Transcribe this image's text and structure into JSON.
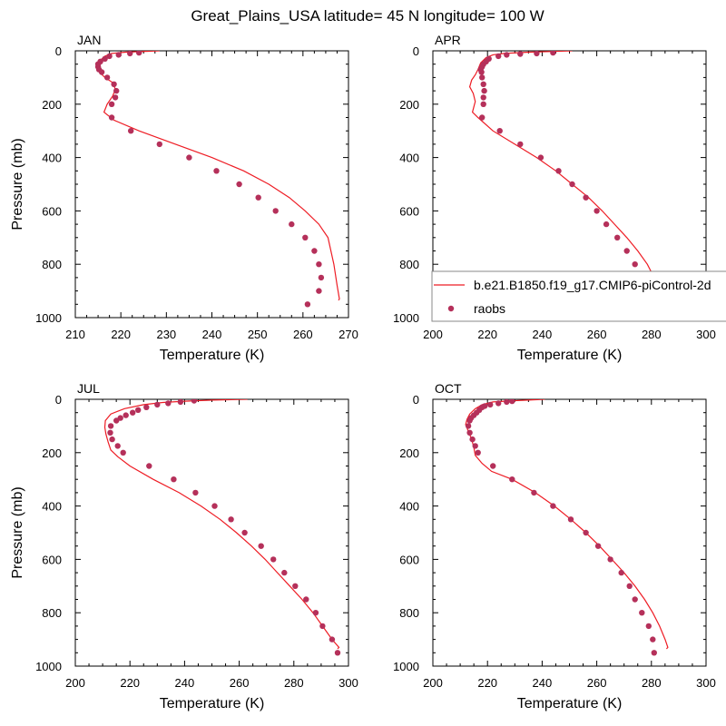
{
  "figure_title": "Great_Plains_USA  latitude= 45 N longitude= 100 W",
  "colors": {
    "model_line": "#ee1c24",
    "obs_marker": "#b5305a",
    "legend_border": "#888888"
  },
  "legend": {
    "model_label": "b.e21.B1850.f19_g17.CMIP6-piControl-2d",
    "obs_label": "raobs"
  },
  "chart_data": [
    {
      "type": "line",
      "panel_label": "JAN",
      "xlabel": "Temperature (K)",
      "ylabel": "Pressure (mb)",
      "xlim": [
        210,
        270
      ],
      "ylim": [
        0,
        1000
      ],
      "y_inverted": true,
      "xticks": [
        210,
        220,
        230,
        240,
        250,
        260,
        270
      ],
      "yticks": [
        0,
        200,
        400,
        600,
        800,
        1000
      ],
      "series": [
        {
          "name": "b.e21.B1850.f19_g17.CMIP6-piControl-2d",
          "kind": "line",
          "points": [
            [
              228.5,
              0
            ],
            [
              221,
              5
            ],
            [
              218,
              10
            ],
            [
              216.5,
              20
            ],
            [
              215.5,
              35
            ],
            [
              215,
              55
            ],
            [
              215.3,
              80
            ],
            [
              216.5,
              100
            ],
            [
              218.3,
              120
            ],
            [
              218.8,
              145
            ],
            [
              218.2,
              170
            ],
            [
              217,
              200
            ],
            [
              216.3,
              230
            ],
            [
              218.5,
              260
            ],
            [
              224,
              300
            ],
            [
              232,
              350
            ],
            [
              240,
              400
            ],
            [
              247,
              450
            ],
            [
              252.5,
              500
            ],
            [
              257,
              550
            ],
            [
              260.5,
              600
            ],
            [
              263.5,
              650
            ],
            [
              265.5,
              700
            ],
            [
              266.8,
              800
            ],
            [
              267.5,
              880
            ],
            [
              268,
              930
            ],
            [
              267.8,
              935
            ]
          ]
        },
        {
          "name": "raobs",
          "kind": "scatter",
          "points": [
            [
              224,
              7
            ],
            [
              222,
              10
            ],
            [
              219.5,
              15
            ],
            [
              217.5,
              20
            ],
            [
              216.5,
              30
            ],
            [
              215.5,
              40
            ],
            [
              215,
              50
            ],
            [
              215,
              60
            ],
            [
              215.2,
              70
            ],
            [
              215.8,
              80
            ],
            [
              217,
              100
            ],
            [
              218.5,
              125
            ],
            [
              219,
              150
            ],
            [
              218.8,
              175
            ],
            [
              218,
              200
            ],
            [
              218,
              250
            ],
            [
              222.2,
              300
            ],
            [
              228.5,
              350
            ],
            [
              235,
              400
            ],
            [
              241,
              450
            ],
            [
              246,
              500
            ],
            [
              250.2,
              550
            ],
            [
              254,
              600
            ],
            [
              257.5,
              650
            ],
            [
              260.5,
              700
            ],
            [
              262.5,
              750
            ],
            [
              263.5,
              800
            ],
            [
              264,
              850
            ],
            [
              263.5,
              900
            ],
            [
              261,
              950
            ]
          ]
        }
      ]
    },
    {
      "type": "line",
      "panel_label": "APR",
      "xlabel": "Temperature (K)",
      "xlim": [
        200,
        300
      ],
      "ylim": [
        0,
        1000
      ],
      "y_inverted": true,
      "xticks": [
        200,
        220,
        240,
        260,
        280,
        300
      ],
      "yticks": [
        0,
        200,
        400,
        600,
        800,
        1000
      ],
      "series": [
        {
          "name": "b.e21.B1850.f19_g17.CMIP6-piControl-2d",
          "kind": "line",
          "points": [
            [
              251,
              0
            ],
            [
              235,
              5
            ],
            [
              226,
              10
            ],
            [
              222,
              15
            ],
            [
              219.5,
              25
            ],
            [
              217.5,
              45
            ],
            [
              216.5,
              70
            ],
            [
              215.5,
              90
            ],
            [
              214.2,
              110
            ],
            [
              213.5,
              135
            ],
            [
              214.8,
              160
            ],
            [
              215.5,
              190
            ],
            [
              214.5,
              230
            ],
            [
              216.5,
              250
            ],
            [
              222,
              300
            ],
            [
              230,
              350
            ],
            [
              238,
              400
            ],
            [
              245,
              450
            ],
            [
              251,
              500
            ],
            [
              257,
              550
            ],
            [
              262,
              600
            ],
            [
              266.5,
              650
            ],
            [
              271,
              700
            ],
            [
              275,
              750
            ],
            [
              278.5,
              800
            ],
            [
              281,
              850
            ],
            [
              283,
              900
            ],
            [
              284,
              930
            ],
            [
              283.5,
              935
            ]
          ]
        },
        {
          "name": "raobs",
          "kind": "scatter",
          "points": [
            [
              244,
              7
            ],
            [
              238,
              10
            ],
            [
              232,
              12
            ],
            [
              227,
              15
            ],
            [
              224,
              20
            ],
            [
              220.5,
              30
            ],
            [
              219.5,
              40
            ],
            [
              218.5,
              50
            ],
            [
              218,
              60
            ],
            [
              217.5,
              70
            ],
            [
              217.8,
              80
            ],
            [
              218,
              100
            ],
            [
              218.5,
              125
            ],
            [
              218.8,
              150
            ],
            [
              218.5,
              175
            ],
            [
              218.5,
              200
            ],
            [
              218,
              250
            ],
            [
              224.5,
              300
            ],
            [
              232,
              350
            ],
            [
              239.5,
              400
            ],
            [
              246,
              450
            ],
            [
              251,
              500
            ],
            [
              256,
              550
            ],
            [
              260,
              600
            ],
            [
              263.5,
              650
            ],
            [
              267.5,
              700
            ],
            [
              271,
              750
            ],
            [
              274,
              800
            ],
            [
              276,
              850
            ],
            [
              277.5,
              900
            ],
            [
              279,
              950
            ]
          ]
        }
      ]
    },
    {
      "type": "line",
      "panel_label": "JUL",
      "xlabel": "Temperature (K)",
      "ylabel": "Pressure (mb)",
      "xlim": [
        200,
        300
      ],
      "ylim": [
        0,
        1000
      ],
      "y_inverted": true,
      "xticks": [
        200,
        220,
        240,
        260,
        280,
        300
      ],
      "yticks": [
        0,
        200,
        400,
        600,
        800,
        1000
      ],
      "series": [
        {
          "name": "b.e21.B1850.f19_g17.CMIP6-piControl-2d",
          "kind": "line",
          "points": [
            [
              263,
              0
            ],
            [
              250,
              3
            ],
            [
              240,
              7
            ],
            [
              232,
              12
            ],
            [
              225,
              20
            ],
            [
              218,
              35
            ],
            [
              213,
              55
            ],
            [
              211,
              80
            ],
            [
              210.8,
              105
            ],
            [
              211.2,
              130
            ],
            [
              212,
              160
            ],
            [
              213,
              190
            ],
            [
              215.5,
              215
            ],
            [
              220,
              250
            ],
            [
              228.5,
              300
            ],
            [
              238,
              350
            ],
            [
              246,
              400
            ],
            [
              253,
              450
            ],
            [
              259,
              500
            ],
            [
              264.5,
              550
            ],
            [
              269.5,
              600
            ],
            [
              274,
              650
            ],
            [
              278.5,
              700
            ],
            [
              283,
              750
            ],
            [
              287,
              800
            ],
            [
              290.5,
              850
            ],
            [
              294,
              900
            ],
            [
              296.5,
              930
            ],
            [
              296,
              935
            ]
          ]
        },
        {
          "name": "raobs",
          "kind": "scatter",
          "points": [
            [
              243.5,
              5
            ],
            [
              238.5,
              10
            ],
            [
              234,
              15
            ],
            [
              230,
              20
            ],
            [
              226,
              30
            ],
            [
              223,
              40
            ],
            [
              221,
              50
            ],
            [
              218.5,
              60
            ],
            [
              216.5,
              70
            ],
            [
              215,
              80
            ],
            [
              213,
              100
            ],
            [
              212.8,
              125
            ],
            [
              213.5,
              150
            ],
            [
              215.5,
              175
            ],
            [
              217.5,
              200
            ],
            [
              227,
              250
            ],
            [
              236,
              300
            ],
            [
              244,
              350
            ],
            [
              251,
              400
            ],
            [
              257,
              450
            ],
            [
              262,
              500
            ],
            [
              268,
              550
            ],
            [
              272.5,
              600
            ],
            [
              276.5,
              650
            ],
            [
              280.5,
              700
            ],
            [
              284.5,
              750
            ],
            [
              288,
              800
            ],
            [
              290.5,
              850
            ],
            [
              294,
              900
            ],
            [
              296,
              950
            ]
          ]
        }
      ]
    },
    {
      "type": "line",
      "panel_label": "OCT",
      "xlabel": "Temperature (K)",
      "xlim": [
        200,
        300
      ],
      "ylim": [
        0,
        1000
      ],
      "y_inverted": true,
      "xticks": [
        200,
        220,
        240,
        260,
        280,
        300
      ],
      "yticks": [
        0,
        200,
        400,
        600,
        800,
        1000
      ],
      "series": [
        {
          "name": "b.e21.B1850.f19_g17.CMIP6-piControl-2d",
          "kind": "line",
          "points": [
            [
              241,
              0
            ],
            [
              230,
              5
            ],
            [
              222,
              10
            ],
            [
              218,
              20
            ],
            [
              215.5,
              35
            ],
            [
              213.5,
              55
            ],
            [
              212.5,
              75
            ],
            [
              212,
              95
            ],
            [
              213,
              120
            ],
            [
              214.2,
              150
            ],
            [
              215,
              180
            ],
            [
              215.5,
              210
            ],
            [
              218,
              240
            ],
            [
              221.5,
              270
            ],
            [
              229,
              300
            ],
            [
              237.5,
              350
            ],
            [
              244.5,
              400
            ],
            [
              250.5,
              450
            ],
            [
              256,
              500
            ],
            [
              261,
              550
            ],
            [
              265.5,
              600
            ],
            [
              270,
              650
            ],
            [
              274,
              700
            ],
            [
              277.5,
              750
            ],
            [
              280.5,
              800
            ],
            [
              283,
              850
            ],
            [
              285,
              900
            ],
            [
              286,
              930
            ],
            [
              285.5,
              935
            ]
          ]
        },
        {
          "name": "raobs",
          "kind": "scatter",
          "points": [
            [
              229,
              7
            ],
            [
              227,
              10
            ],
            [
              224,
              15
            ],
            [
              221,
              20
            ],
            [
              219,
              25
            ],
            [
              218,
              30
            ],
            [
              217,
              40
            ],
            [
              216,
              50
            ],
            [
              215,
              60
            ],
            [
              214,
              70
            ],
            [
              213.5,
              80
            ],
            [
              213,
              100
            ],
            [
              213.5,
              125
            ],
            [
              214.5,
              150
            ],
            [
              215.5,
              175
            ],
            [
              216.5,
              200
            ],
            [
              222,
              250
            ],
            [
              229,
              300
            ],
            [
              237,
              350
            ],
            [
              244,
              400
            ],
            [
              250.5,
              450
            ],
            [
              256,
              500
            ],
            [
              260.5,
              550
            ],
            [
              265,
              600
            ],
            [
              269,
              650
            ],
            [
              272,
              700
            ],
            [
              274,
              750
            ],
            [
              276.5,
              800
            ],
            [
              279,
              850
            ],
            [
              280.5,
              900
            ],
            [
              281,
              950
            ]
          ]
        }
      ]
    }
  ]
}
